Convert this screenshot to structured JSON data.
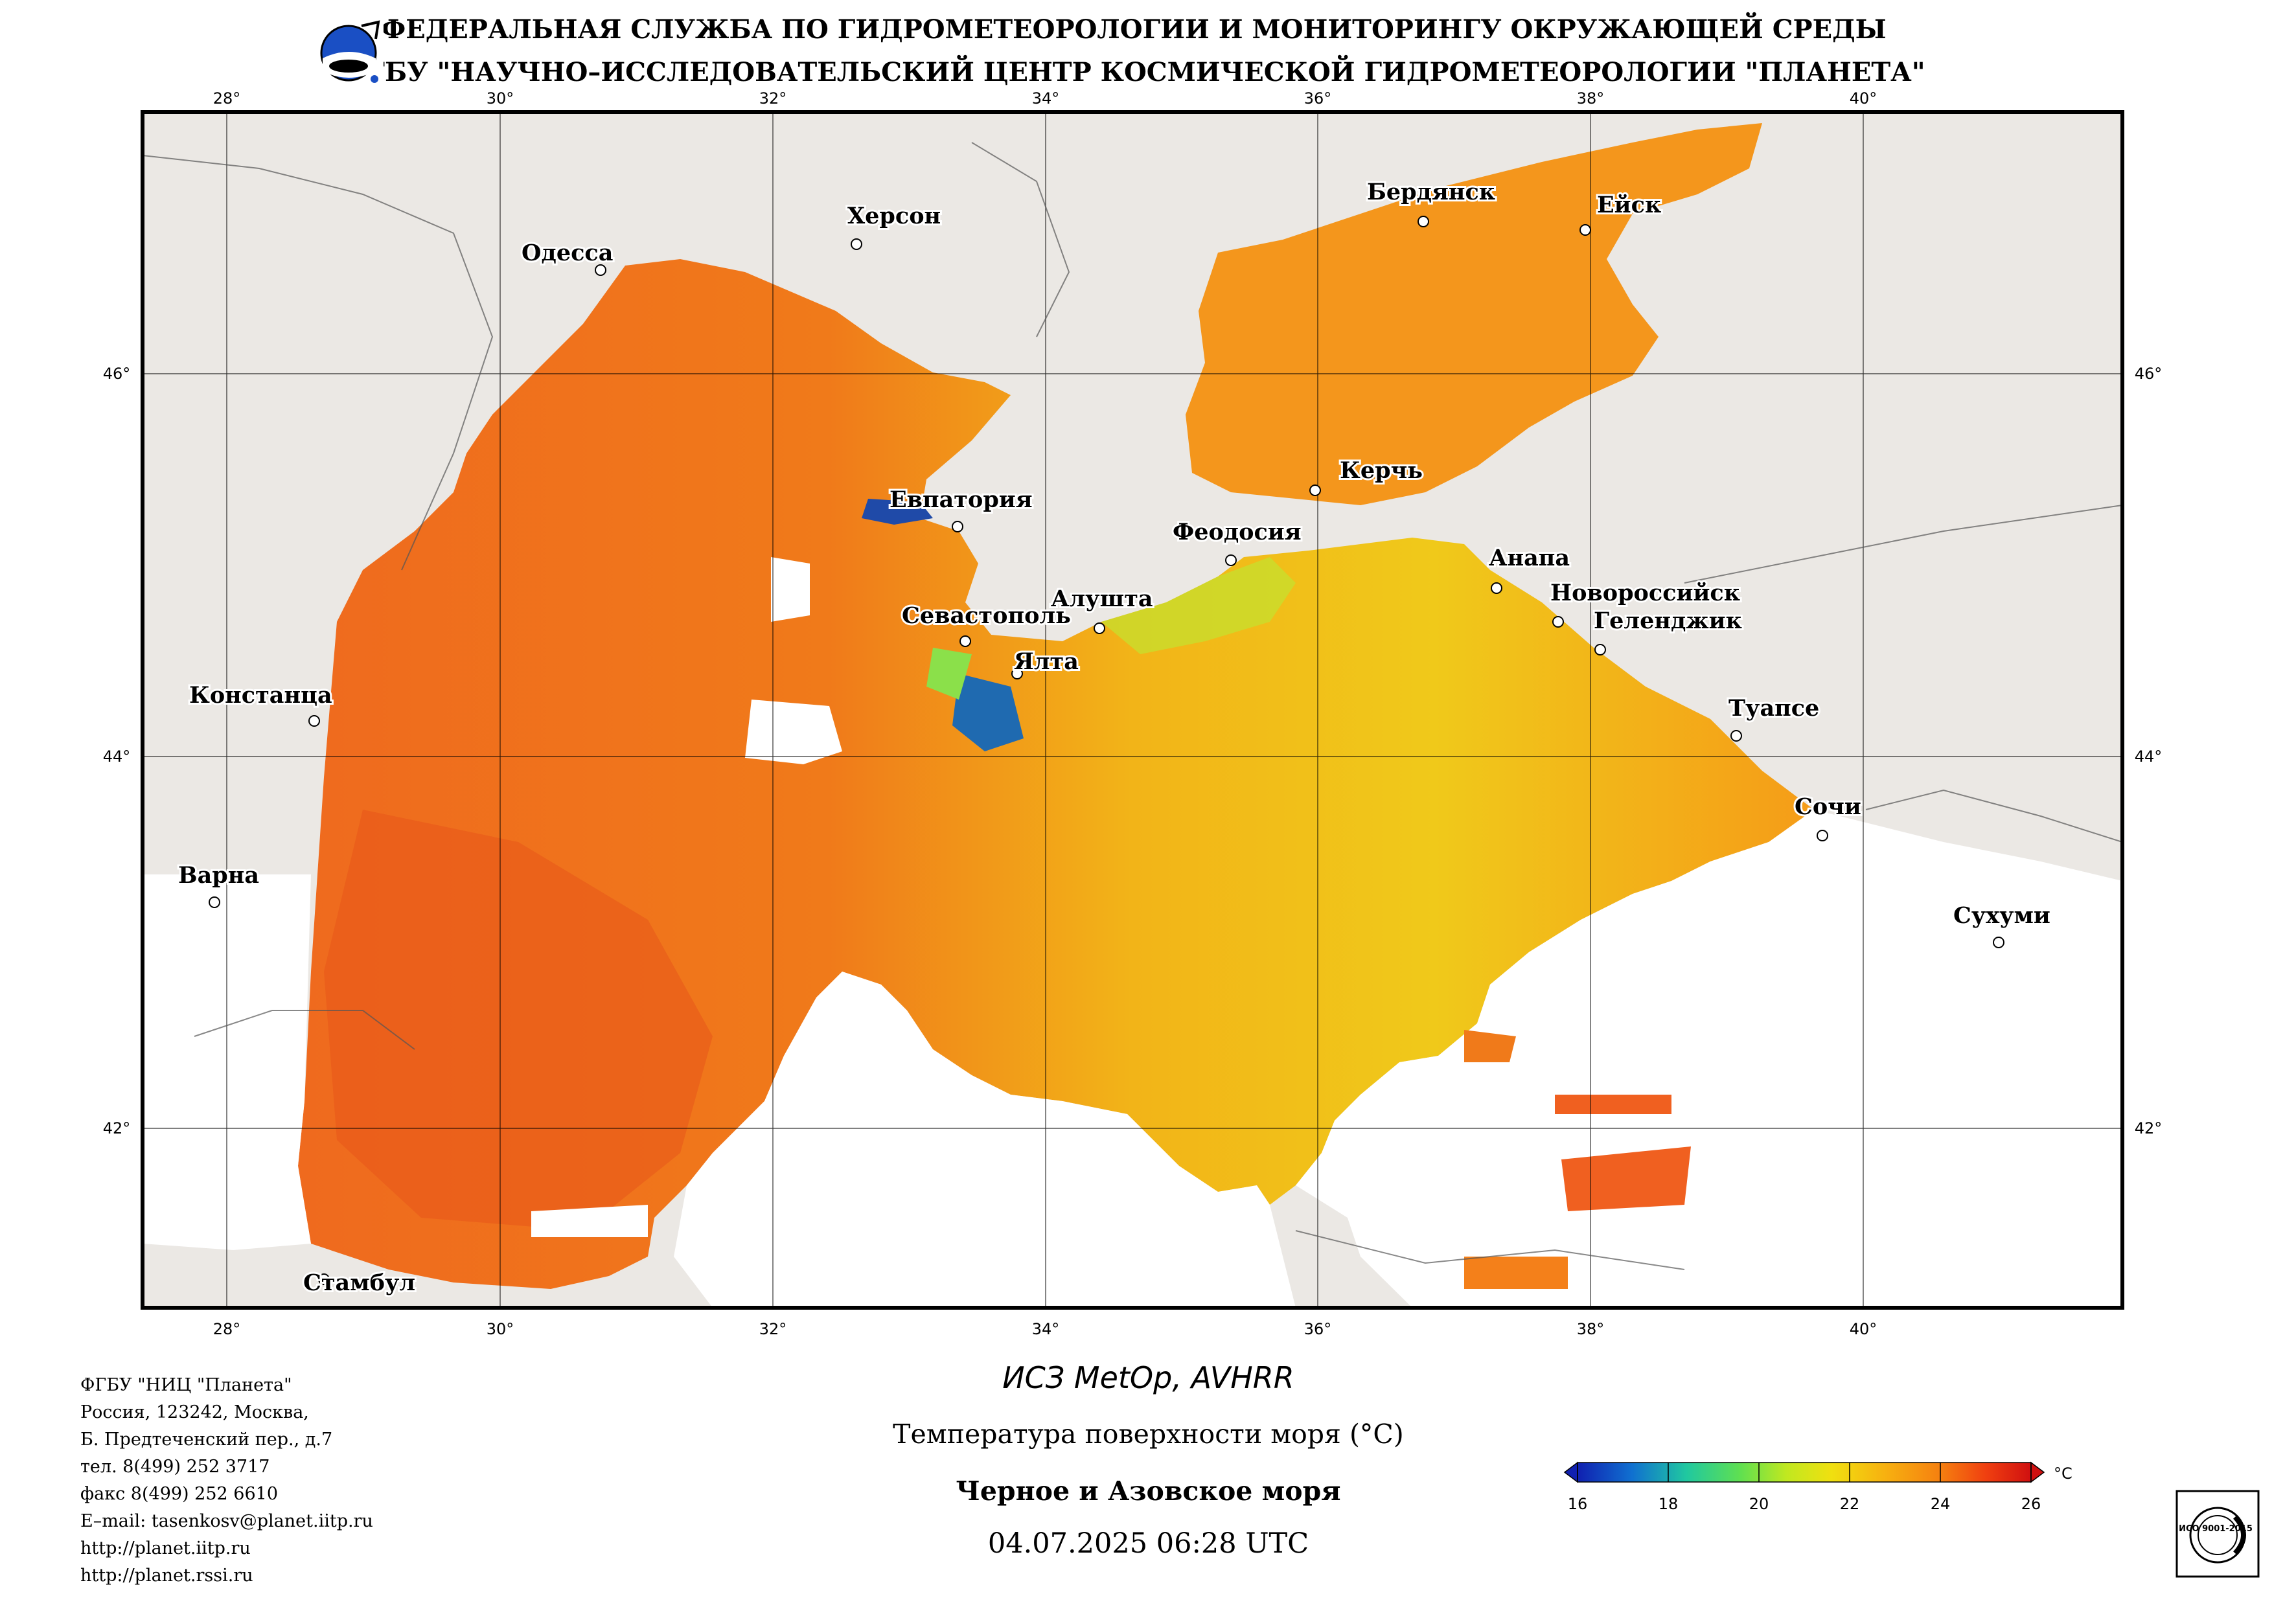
{
  "header": {
    "line1": "ФЕДЕРАЛЬНАЯ СЛУЖБА ПО ГИДРОМЕТЕОРОЛОГИИ И МОНИТОРИНГУ ОКРУЖАЮЩЕЙ СРЕДЫ",
    "line2": "ФГБУ \"НАУЧНО–ИССЛЕДОВАТЕЛЬСКИЙ ЦЕНТР КОСМИЧЕСКОЙ ГИДРОМЕТЕОРОЛОГИИ \"ПЛАНЕТА\""
  },
  "map": {
    "lon_ticks": [
      "28°",
      "30°",
      "32°",
      "34°",
      "36°",
      "38°",
      "40°"
    ],
    "lat_ticks": [
      "46°",
      "44°",
      "42°"
    ],
    "cities": [
      "Одесса",
      "Херсон",
      "Бердянск",
      "Ейск",
      "Керчь",
      "Евпатория",
      "Феодосия",
      "Анапа",
      "Новороссийск",
      "Геленджик",
      "Севастополь",
      "Алушта",
      "Ялта",
      "Констанца",
      "Туапсе",
      "Сочи",
      "Варна",
      "Сухуми",
      "Стамбул"
    ],
    "colors": {
      "land": "#ebe8e4",
      "cloud": "#ffffff",
      "sst_warm": "#f28a18",
      "sst_hot": "#e8521a",
      "sst_mid": "#ecd21a",
      "sst_cool": "#a8e040",
      "sst_cold": "#1f4aa8"
    }
  },
  "product": {
    "satellite": "ИСЗ MetOp, AVHRR",
    "title": "Температура поверхности моря (°С)",
    "region": "Черное и Азовское моря",
    "datetime": "04.07.2025 06:28 UTC"
  },
  "colorbar": {
    "unit": "°С",
    "ticks": [
      "16",
      "18",
      "20",
      "22",
      "24",
      "26"
    ],
    "colors": [
      "#1020b0",
      "#1070d0",
      "#20c8a0",
      "#60e050",
      "#c0e820",
      "#f0e010",
      "#f7b010",
      "#f58010",
      "#f04010",
      "#d01010"
    ]
  },
  "contacts": [
    "ФГБУ \"НИЦ \"Планета\"",
    "Россия, 123242, Москва,",
    "Б. Предтеченский пер., д.7",
    "тел. 8(499) 252 3717",
    "факс 8(499) 252 6610",
    "E–mail: tasenkosv@planet.iitp.ru",
    "http://planet.iitp.ru",
    "http://planet.rssi.ru"
  ],
  "logo_badge": {
    "name": "ИСО 9001-2015",
    "text": "ИСО 9001-2015"
  }
}
